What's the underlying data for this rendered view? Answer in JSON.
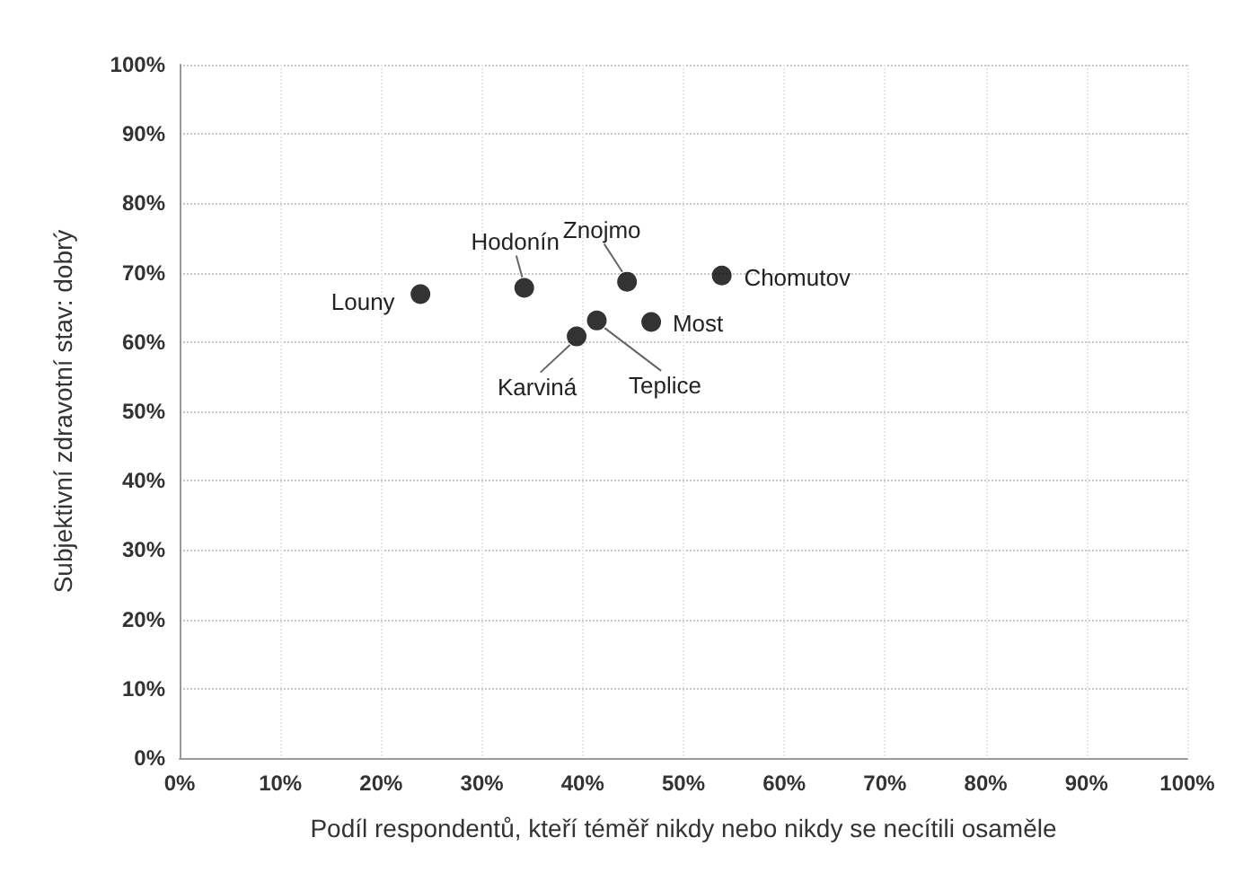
{
  "chart_data": {
    "type": "scatter",
    "xlabel": "Podíl respondentů, kteří téměř nikdy nebo nikdy se necítili osaměle",
    "ylabel": "Subjektivní zdravotní stav: dobrý",
    "x": [
      23.9,
      34.2,
      44.4,
      53.8,
      46.8,
      41.4,
      39.4
    ],
    "series": [
      {
        "color": "#000000",
        "values": [
          66.9,
          67.8,
          68.7,
          69.6,
          62.9,
          63.1,
          60.8
        ]
      }
    ],
    "annotations": [
      {
        "text": "Louny",
        "x": 23.9,
        "y": 66.9
      },
      {
        "text": "Hodonín",
        "x": 34.2,
        "y": 67.8
      },
      {
        "text": "Znojmo",
        "x": 44.4,
        "y": 68.7
      },
      {
        "text": "Chomutov",
        "x": 53.8,
        "y": 69.6
      },
      {
        "text": "Most",
        "x": 46.8,
        "y": 62.9
      },
      {
        "text": "Teplice",
        "x": 41.4,
        "y": 63.1
      },
      {
        "text": "Karviná",
        "x": 39.4,
        "y": 60.8
      }
    ],
    "xlim": [
      0,
      100
    ],
    "xticks": [
      {
        "value": 0,
        "label": "0%"
      },
      {
        "value": 10,
        "label": "10%"
      },
      {
        "value": 20,
        "label": "20%"
      },
      {
        "value": 30,
        "label": "30%"
      },
      {
        "value": 40,
        "label": "40%"
      },
      {
        "value": 50,
        "label": "50%"
      },
      {
        "value": 60,
        "label": "60%"
      },
      {
        "value": 70,
        "label": "70%"
      },
      {
        "value": 80,
        "label": "80%"
      },
      {
        "value": 90,
        "label": "90%"
      },
      {
        "value": 100,
        "label": "100%"
      }
    ],
    "ylim": [
      0,
      100
    ],
    "yticks": [
      {
        "value": 0,
        "label": "0%"
      },
      {
        "value": 10,
        "label": "10%"
      },
      {
        "value": 20,
        "label": "20%"
      },
      {
        "value": 30,
        "label": "30%"
      },
      {
        "value": 40,
        "label": "40%"
      },
      {
        "value": 50,
        "label": "50%"
      },
      {
        "value": 60,
        "label": "60%"
      },
      {
        "value": 70,
        "label": "70%"
      },
      {
        "value": 80,
        "label": "80%"
      },
      {
        "value": 90,
        "label": "90%"
      },
      {
        "value": 100,
        "label": "100%"
      }
    ],
    "grid": true,
    "marker": "circle"
  }
}
